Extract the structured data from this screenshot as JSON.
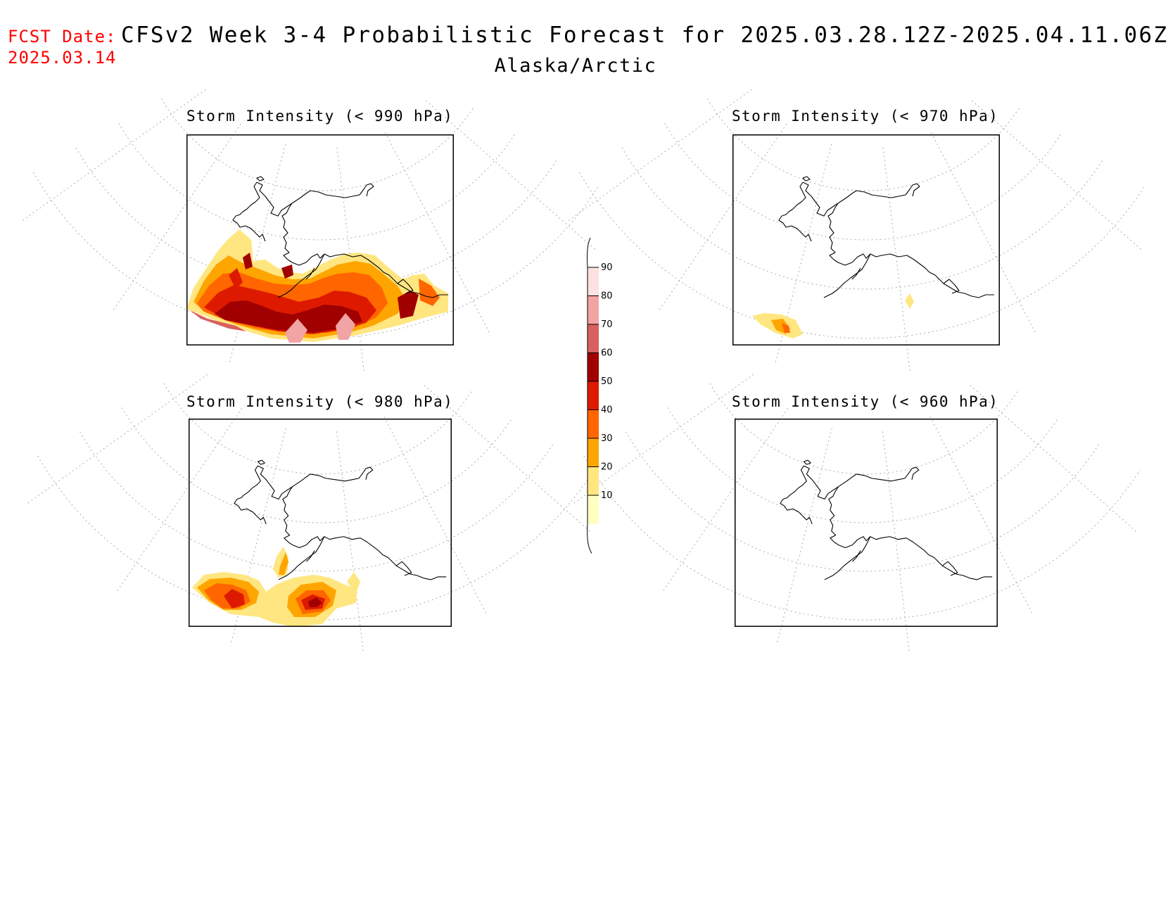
{
  "header": {
    "fcst_label": "FCST Date:",
    "fcst_date": "2025.03.14",
    "title": "CFSv2 Week 3-4 Probabilistic Forecast for 2025.03.28.12Z-2025.04.11.06Z",
    "region": "Alaska/Arctic"
  },
  "panels": [
    {
      "title": "Storm Intensity (< 990 hPa)"
    },
    {
      "title": "Storm Intensity (< 970 hPa)"
    },
    {
      "title": "Storm Intensity (< 980 hPa)"
    },
    {
      "title": "Storm Intensity (< 960 hPa)"
    }
  ],
  "colorbar": {
    "labels": [
      "90",
      "80",
      "70",
      "60",
      "50",
      "40",
      "30",
      "20",
      "10"
    ],
    "colors": [
      "#fde0e0",
      "#f2a3a3",
      "#d96060",
      "#a00000",
      "#dd1a00",
      "#ff6600",
      "#ffa500",
      "#ffe680",
      "#ffffc0"
    ]
  },
  "colors": {
    "header_red": "#ff0000",
    "levels": {
      "10": "#ffffc0",
      "20": "#ffe680",
      "30": "#ffa500",
      "40": "#ff6600",
      "50": "#dd1a00",
      "60": "#a00000",
      "70": "#d96060",
      "80": "#f2a3a3"
    }
  }
}
